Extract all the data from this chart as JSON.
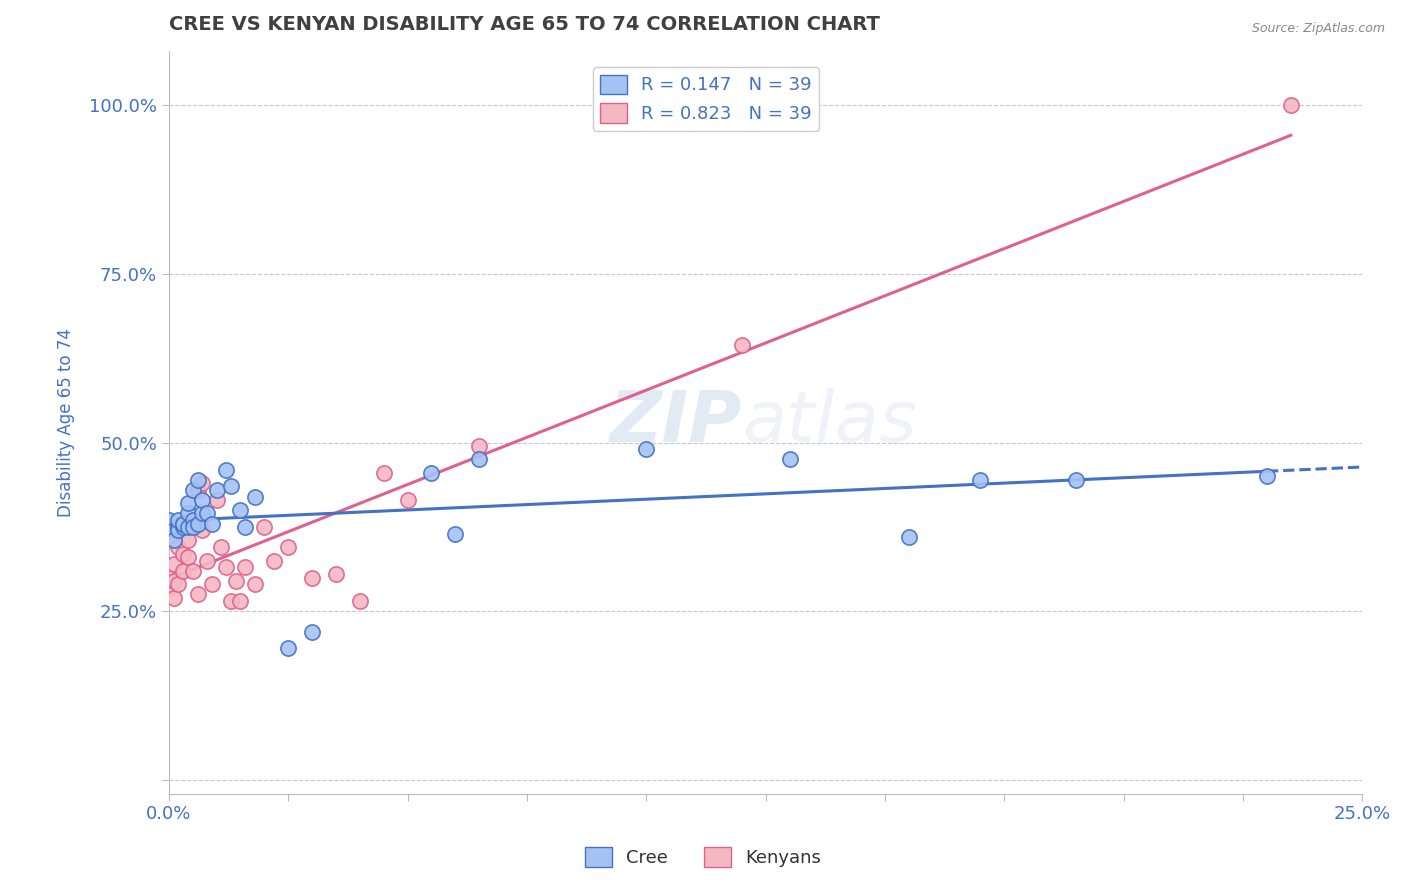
{
  "title": "CREE VS KENYAN DISABILITY AGE 65 TO 74 CORRELATION CHART",
  "source_text": "Source: ZipAtlas.com",
  "xlabel": "",
  "ylabel": "Disability Age 65 to 74",
  "xlim": [
    0.0,
    0.25
  ],
  "ylim": [
    -0.02,
    1.08
  ],
  "x_ticks": [
    0.0,
    0.025,
    0.05,
    0.075,
    0.1,
    0.125,
    0.15,
    0.175,
    0.2,
    0.225,
    0.25
  ],
  "x_tick_labels": [
    "0.0%",
    "",
    "",
    "",
    "",
    "",
    "",
    "",
    "",
    "",
    "25.0%"
  ],
  "y_ticks": [
    0.0,
    0.25,
    0.5,
    0.75,
    1.0
  ],
  "y_tick_labels": [
    "",
    "25.0%",
    "50.0%",
    "75.0%",
    "100.0%"
  ],
  "cree_color": "#a4c2f4",
  "kenyan_color": "#f4b8c1",
  "cree_line_color": "#4472c4",
  "kenyan_line_color": "#e06090",
  "legend_r_cree": "R = 0.147",
  "legend_n_cree": "N = 39",
  "legend_r_kenyan": "R = 0.823",
  "legend_n_kenyan": "N = 39",
  "watermark_zip": "ZIP",
  "watermark_atlas": "atlas",
  "cree_data": [
    [
      0.0,
      0.375
    ],
    [
      0.0,
      0.385
    ],
    [
      0.001,
      0.37
    ],
    [
      0.001,
      0.355
    ],
    [
      0.002,
      0.375
    ],
    [
      0.002,
      0.37
    ],
    [
      0.002,
      0.385
    ],
    [
      0.003,
      0.375
    ],
    [
      0.003,
      0.38
    ],
    [
      0.003,
      0.38
    ],
    [
      0.004,
      0.395
    ],
    [
      0.004,
      0.41
    ],
    [
      0.004,
      0.375
    ],
    [
      0.005,
      0.385
    ],
    [
      0.005,
      0.43
    ],
    [
      0.005,
      0.375
    ],
    [
      0.006,
      0.445
    ],
    [
      0.006,
      0.38
    ],
    [
      0.007,
      0.395
    ],
    [
      0.007,
      0.415
    ],
    [
      0.008,
      0.395
    ],
    [
      0.009,
      0.38
    ],
    [
      0.01,
      0.43
    ],
    [
      0.012,
      0.46
    ],
    [
      0.013,
      0.435
    ],
    [
      0.015,
      0.4
    ],
    [
      0.016,
      0.375
    ],
    [
      0.018,
      0.42
    ],
    [
      0.025,
      0.195
    ],
    [
      0.03,
      0.22
    ],
    [
      0.055,
      0.455
    ],
    [
      0.06,
      0.365
    ],
    [
      0.065,
      0.475
    ],
    [
      0.1,
      0.49
    ],
    [
      0.13,
      0.475
    ],
    [
      0.155,
      0.36
    ],
    [
      0.17,
      0.445
    ],
    [
      0.19,
      0.445
    ],
    [
      0.23,
      0.45
    ]
  ],
  "kenyan_data": [
    [
      0.0,
      0.3
    ],
    [
      0.0,
      0.285
    ],
    [
      0.001,
      0.295
    ],
    [
      0.001,
      0.27
    ],
    [
      0.001,
      0.32
    ],
    [
      0.002,
      0.345
    ],
    [
      0.002,
      0.29
    ],
    [
      0.003,
      0.375
    ],
    [
      0.003,
      0.31
    ],
    [
      0.003,
      0.335
    ],
    [
      0.004,
      0.355
    ],
    [
      0.004,
      0.33
    ],
    [
      0.005,
      0.385
    ],
    [
      0.005,
      0.31
    ],
    [
      0.006,
      0.43
    ],
    [
      0.006,
      0.275
    ],
    [
      0.007,
      0.37
    ],
    [
      0.007,
      0.44
    ],
    [
      0.008,
      0.325
    ],
    [
      0.009,
      0.29
    ],
    [
      0.01,
      0.415
    ],
    [
      0.011,
      0.345
    ],
    [
      0.012,
      0.315
    ],
    [
      0.013,
      0.265
    ],
    [
      0.014,
      0.295
    ],
    [
      0.015,
      0.265
    ],
    [
      0.016,
      0.315
    ],
    [
      0.018,
      0.29
    ],
    [
      0.02,
      0.375
    ],
    [
      0.022,
      0.325
    ],
    [
      0.025,
      0.345
    ],
    [
      0.03,
      0.3
    ],
    [
      0.035,
      0.305
    ],
    [
      0.04,
      0.265
    ],
    [
      0.045,
      0.455
    ],
    [
      0.05,
      0.415
    ],
    [
      0.065,
      0.495
    ],
    [
      0.12,
      0.645
    ],
    [
      0.235,
      1.0
    ]
  ],
  "grid_color": "#c8c8c8",
  "title_color": "#404040",
  "axis_label_color": "#4472c4",
  "tick_label_color": "#4472c4",
  "background_color": "#ffffff"
}
